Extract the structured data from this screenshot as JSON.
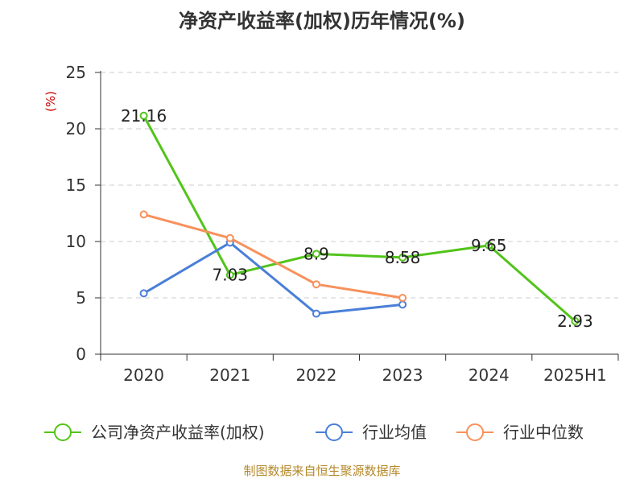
{
  "chart_data": {
    "type": "line",
    "title": "净资产收益率(加权)历年情况(%)",
    "ylabel": "(%)",
    "xlabel": "",
    "categories": [
      "2020",
      "2021",
      "2022",
      "2023",
      "2024",
      "2025H1"
    ],
    "ylim": [
      0,
      25
    ],
    "yticks": [
      0,
      5,
      10,
      15,
      20,
      25
    ],
    "grid": true,
    "legend_position": "bottom",
    "series": [
      {
        "name": "公司净资产收益率(加权)",
        "color": "#52c41a",
        "values": [
          21.16,
          7.03,
          8.9,
          8.58,
          9.65,
          2.93
        ],
        "data_labels": [
          "21.16",
          "7.03",
          "8.9",
          "8.58",
          "9.65",
          "2.93"
        ]
      },
      {
        "name": "行业均值",
        "color": "#4a7fd8",
        "values": [
          5.4,
          9.9,
          3.6,
          4.4,
          null,
          null
        ]
      },
      {
        "name": "行业中位数",
        "color": "#f7915c",
        "values": [
          12.4,
          10.3,
          6.2,
          5.0,
          null,
          null
        ]
      }
    ],
    "source": "制图数据来自恒生聚源数据库"
  }
}
